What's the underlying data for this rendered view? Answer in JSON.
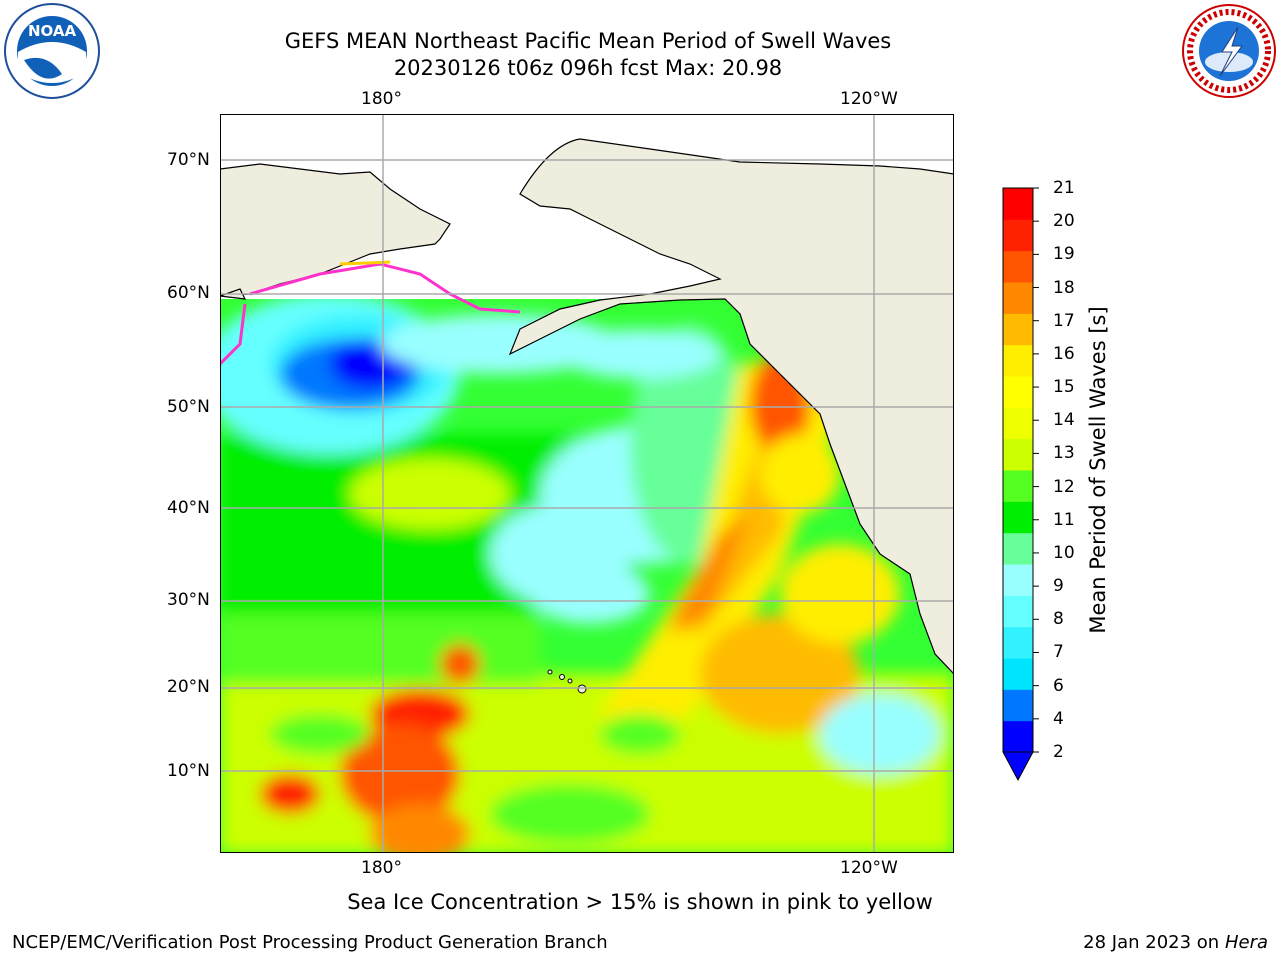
{
  "title": {
    "line1": "GEFS MEAN Northeast Pacific Mean Period of Swell Waves",
    "line2": "20230126 t06z 096h fcst   Max: 20.98"
  },
  "map": {
    "top_lon_labels": [
      "180°",
      "120°W"
    ],
    "bottom_lon_labels": [
      "180°",
      "120°W"
    ],
    "lat_labels": [
      "70°N",
      "60°N",
      "50°N",
      "40°N",
      "30°N",
      "20°N",
      "10°N"
    ],
    "land_color": "#efedde",
    "ocean_base_color": "#33ff33"
  },
  "colorbar": {
    "title": "Mean Period of Swell Waves [s]",
    "ticks": [
      "21",
      "20",
      "19",
      "18",
      "17",
      "16",
      "15",
      "14",
      "13",
      "12",
      "11",
      "10",
      "9",
      "8",
      "7",
      "6",
      "4",
      "2"
    ],
    "colors": [
      "#0000ff",
      "#0077ff",
      "#00e5ff",
      "#33f2ff",
      "#66ffff",
      "#99ffff",
      "#66ff99",
      "#00ee00",
      "#55ff22",
      "#ccff00",
      "#eeff00",
      "#ffff00",
      "#ffee00",
      "#ffbb00",
      "#ff8800",
      "#ff5500",
      "#ff2200",
      "#ff0000"
    ]
  },
  "note": "Sea Ice Concentration > 15% is shown in pink to yellow",
  "footer": {
    "left": "NCEP/EMC/Verification Post Processing Product Generation Branch",
    "right_date": "28 Jan 2023 on ",
    "right_host": "Hera"
  },
  "logos": {
    "noaa": "NOAA",
    "nws": "NATIONAL WEATHER SERVICE"
  }
}
